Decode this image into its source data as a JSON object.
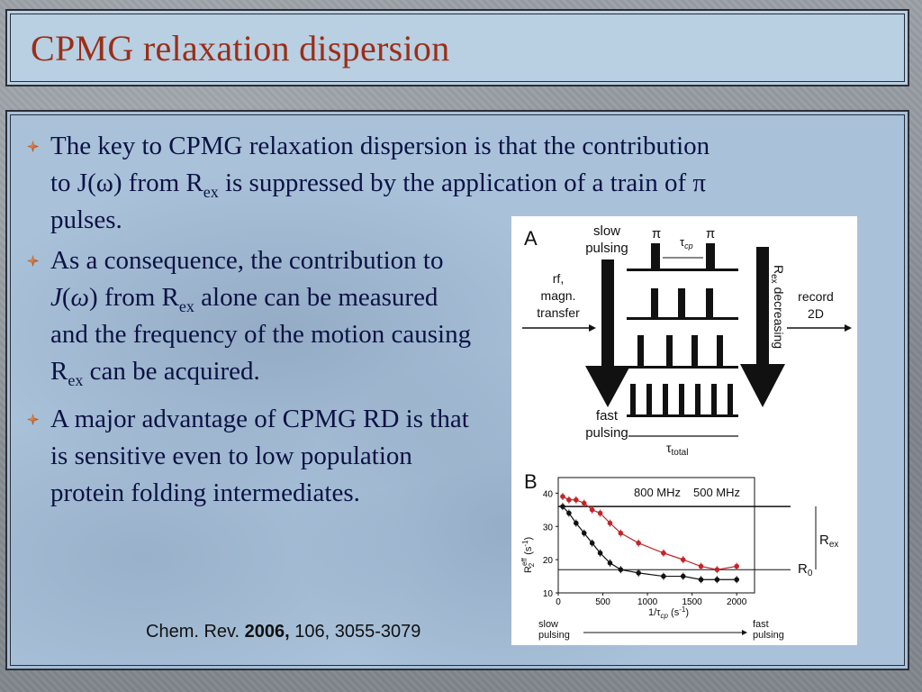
{
  "slide": {
    "title": "CPMG relaxation dispersion",
    "bullets": [
      {
        "pre": "The key to CPMG relaxation dispersion is that the contribution to J(",
        "omega": "ω",
        "mid": ") from R",
        "sub": "ex",
        "post": " is suppressed by the application of a train of ",
        "pi": "π",
        "end": " pulses."
      },
      {
        "pre": "As a consequence, the contribution to ",
        "J": "J",
        "paren_open": "(",
        "omega": "ω",
        "mid": ") from R",
        "sub": "ex",
        "post": " alone can be measured and the frequency of the motion causing R",
        "sub2": "ex",
        "end": " can be acquired."
      },
      {
        "text": "A major advantage of CPMG RD is that is sensitive even to low population protein folding intermediates."
      }
    ],
    "citation": {
      "journal": "Chem. Rev. ",
      "year": "2006,",
      "rest": " 106, 3055-3079"
    }
  },
  "figure": {
    "panel_a": {
      "label": "A",
      "slow_pulsing": [
        "slow",
        "pulsing"
      ],
      "fast_pulsing": [
        "fast",
        "pulsing"
      ],
      "pi": "π",
      "tau_cp": "τ",
      "tau_cp_sub": "cp",
      "left_text": [
        "rf,",
        "magn.",
        "transfer"
      ],
      "right_vertical": "R",
      "right_vertical_sub": "ex",
      "right_vertical_rest": " decreasing",
      "record": [
        "record",
        "2D"
      ],
      "tau_total": "τ",
      "tau_total_sub": "total"
    },
    "panel_b": {
      "label": "B",
      "legend_800": "800 MHz",
      "legend_500": "500 MHz",
      "rex": "R",
      "rex_sub": "ex",
      "r0": "R",
      "r0_sub": "0",
      "y_ticks": [
        "10",
        "20",
        "30",
        "40"
      ],
      "x_ticks": [
        "0",
        "500",
        "1000",
        "1500",
        "2000"
      ],
      "xlabel": "1/τ",
      "xlabel_sub": "cp",
      "xlabel_unit": " (s",
      "xlabel_exp": "-1",
      "xlabel_close": ")",
      "ylabel": "R",
      "ylabel_sup": "eff",
      "ylabel_sub": "2",
      "ylabel_unit": " (s",
      "ylabel_exp": "-1",
      "ylabel_close": ")",
      "slow_pulsing": [
        "slow",
        "pulsing"
      ],
      "fast_pulsing": [
        "fast",
        "pulsing"
      ],
      "colors": {
        "800": "#c0262a",
        "500": "#111111"
      }
    }
  },
  "chart_data": {
    "type": "scatter",
    "xlabel": "1/τcp (s-1)",
    "ylabel": "R2eff (s-1)",
    "xlim": [
      0,
      2200
    ],
    "ylim": [
      10,
      42
    ],
    "series": [
      {
        "name": "800 MHz",
        "color": "#c0262a",
        "x": [
          50,
          120,
          200,
          290,
          380,
          470,
          580,
          700,
          900,
          1180,
          1400,
          1600,
          1780,
          2000
        ],
        "y": [
          39,
          38,
          38,
          37,
          35,
          34,
          31,
          28,
          25,
          22,
          20,
          18,
          17,
          18
        ]
      },
      {
        "name": "500 MHz",
        "color": "#111111",
        "x": [
          50,
          120,
          200,
          290,
          380,
          470,
          580,
          700,
          900,
          1180,
          1400,
          1600,
          1780,
          2000
        ],
        "y": [
          36,
          34,
          31,
          28,
          25,
          22,
          19,
          17,
          16,
          15,
          15,
          14,
          14,
          14
        ]
      }
    ],
    "reference_lines": {
      "R_high": 36,
      "R0": 17
    }
  }
}
